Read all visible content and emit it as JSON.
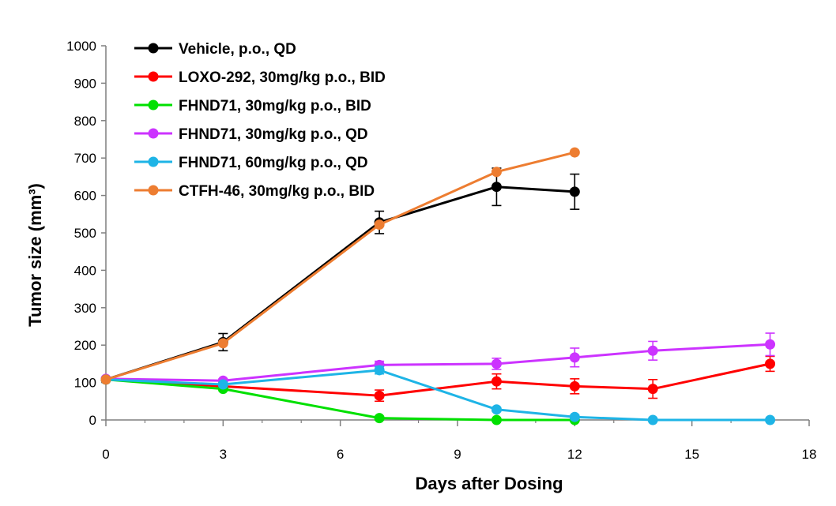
{
  "chart_data": {
    "type": "line",
    "xlabel": "Days after Dosing",
    "ylabel": "Tumor size (mm³)",
    "xlim": [
      0,
      18
    ],
    "ylim": [
      0,
      1000
    ],
    "xticks": [
      0,
      3,
      6,
      9,
      12,
      15,
      18
    ],
    "yticks": [
      0,
      100,
      200,
      300,
      400,
      500,
      600,
      700,
      800,
      900,
      1000
    ],
    "grid": false,
    "legend_position": "top-left",
    "series": [
      {
        "name": "Vehicle, p.o., QD",
        "color": "#000000",
        "x": [
          0,
          3,
          7,
          10,
          12
        ],
        "y": [
          108,
          208,
          528,
          623,
          610
        ],
        "error": [
          0,
          23,
          30,
          50,
          47
        ]
      },
      {
        "name": "LOXO-292, 30mg/kg p.o., BID",
        "color": "#ff0000",
        "x": [
          0,
          3,
          7,
          10,
          12,
          14,
          17
        ],
        "y": [
          108,
          90,
          65,
          103,
          90,
          83,
          150
        ],
        "error": [
          0,
          8,
          15,
          20,
          20,
          25,
          20
        ]
      },
      {
        "name": "FHND71, 30mg/kg p.o., BID",
        "color": "#00e000",
        "x": [
          0,
          3,
          7,
          10,
          12
        ],
        "y": [
          108,
          83,
          5,
          0,
          0
        ],
        "error": [
          0,
          5,
          5,
          0,
          0
        ]
      },
      {
        "name": "FHND71, 30mg/kg p.o., QD",
        "color": "#cc33ff",
        "x": [
          0,
          3,
          7,
          10,
          12,
          14,
          17
        ],
        "y": [
          110,
          105,
          147,
          150,
          167,
          185,
          202
        ],
        "error": [
          0,
          5,
          10,
          15,
          25,
          25,
          30
        ]
      },
      {
        "name": "FHND71, 60mg/kg p.o., QD",
        "color": "#1eb4e6",
        "x": [
          0,
          3,
          7,
          10,
          12,
          14,
          17
        ],
        "y": [
          108,
          95,
          133,
          28,
          8,
          0,
          0
        ],
        "error": [
          0,
          5,
          10,
          5,
          5,
          0,
          0
        ]
      },
      {
        "name": "CTFH-46, 30mg/kg p.o., BID",
        "color": "#ed7d31",
        "x": [
          0,
          3,
          7,
          10,
          12
        ],
        "y": [
          108,
          205,
          522,
          663,
          715
        ],
        "error": [
          0,
          0,
          0,
          0,
          0
        ]
      }
    ]
  }
}
